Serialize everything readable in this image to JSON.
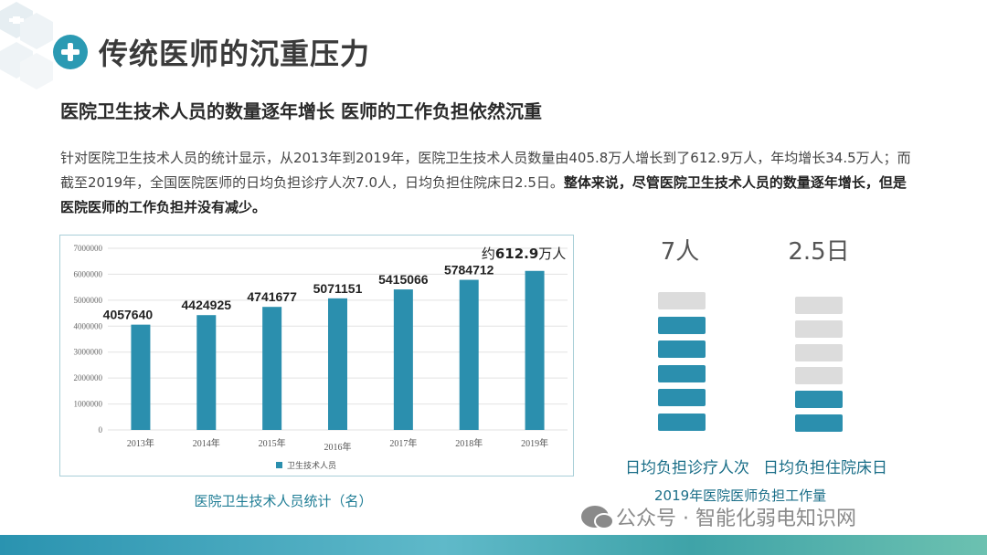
{
  "header": {
    "title": "传统医师的沉重压力"
  },
  "subtitle": "医院卫生技术人员的数量逐年增长 医师的工作负担依然沉重",
  "paragraph": {
    "normal": "针对医院卫生技术人员的统计显示，从2013年到2019年，医院卫生技术人员数量由405.8万人增长到了612.9万人，年均增长34.5万人；而截至2019年，全国医院医师的日均负担诊疗人次7.0人，日均负担住院床日2.5日。",
    "bold": "整体来说，尽管医院卫生技术人员的数量逐年增长，但是医院医师的工作负担并没有减少。"
  },
  "chart_data": {
    "type": "bar",
    "categories": [
      "2013年",
      "2014年",
      "2015年",
      "2016年",
      "2017年",
      "2018年",
      "2019年"
    ],
    "series": [
      {
        "name": "卫生技术人员",
        "values": [
          4057640,
          4424925,
          4741677,
          5071151,
          5415066,
          5784712,
          6129000
        ]
      }
    ],
    "data_labels": [
      "4057640",
      "4424925",
      "4741677",
      "5071151",
      "5415066",
      "5784712",
      ""
    ],
    "annotation_prefix": "约",
    "annotation_value": "612.9",
    "annotation_suffix": "万人",
    "yticks": [
      "0",
      "1000000",
      "2000000",
      "3000000",
      "4000000",
      "5000000",
      "6000000",
      "7000000"
    ],
    "ylim": [
      0,
      7000000
    ],
    "grid": true,
    "bar_color": "#2b8fae",
    "legend_position": "bottom"
  },
  "chart_caption": "医院卫生技术人员统计（名）",
  "workload": {
    "items": [
      {
        "value": "7人",
        "filled": 5,
        "total": 6,
        "label": "日均负担诊疗人次"
      },
      {
        "value": "2.5日",
        "filled": 2,
        "total": 6,
        "label": "日均负担住院床日"
      }
    ],
    "caption": "2019年医院医师负担工作量",
    "filled_color": "#2b8fae",
    "empty_color": "#dcdcdc"
  },
  "watermark": "公众号 · 智能化弱电知识网"
}
